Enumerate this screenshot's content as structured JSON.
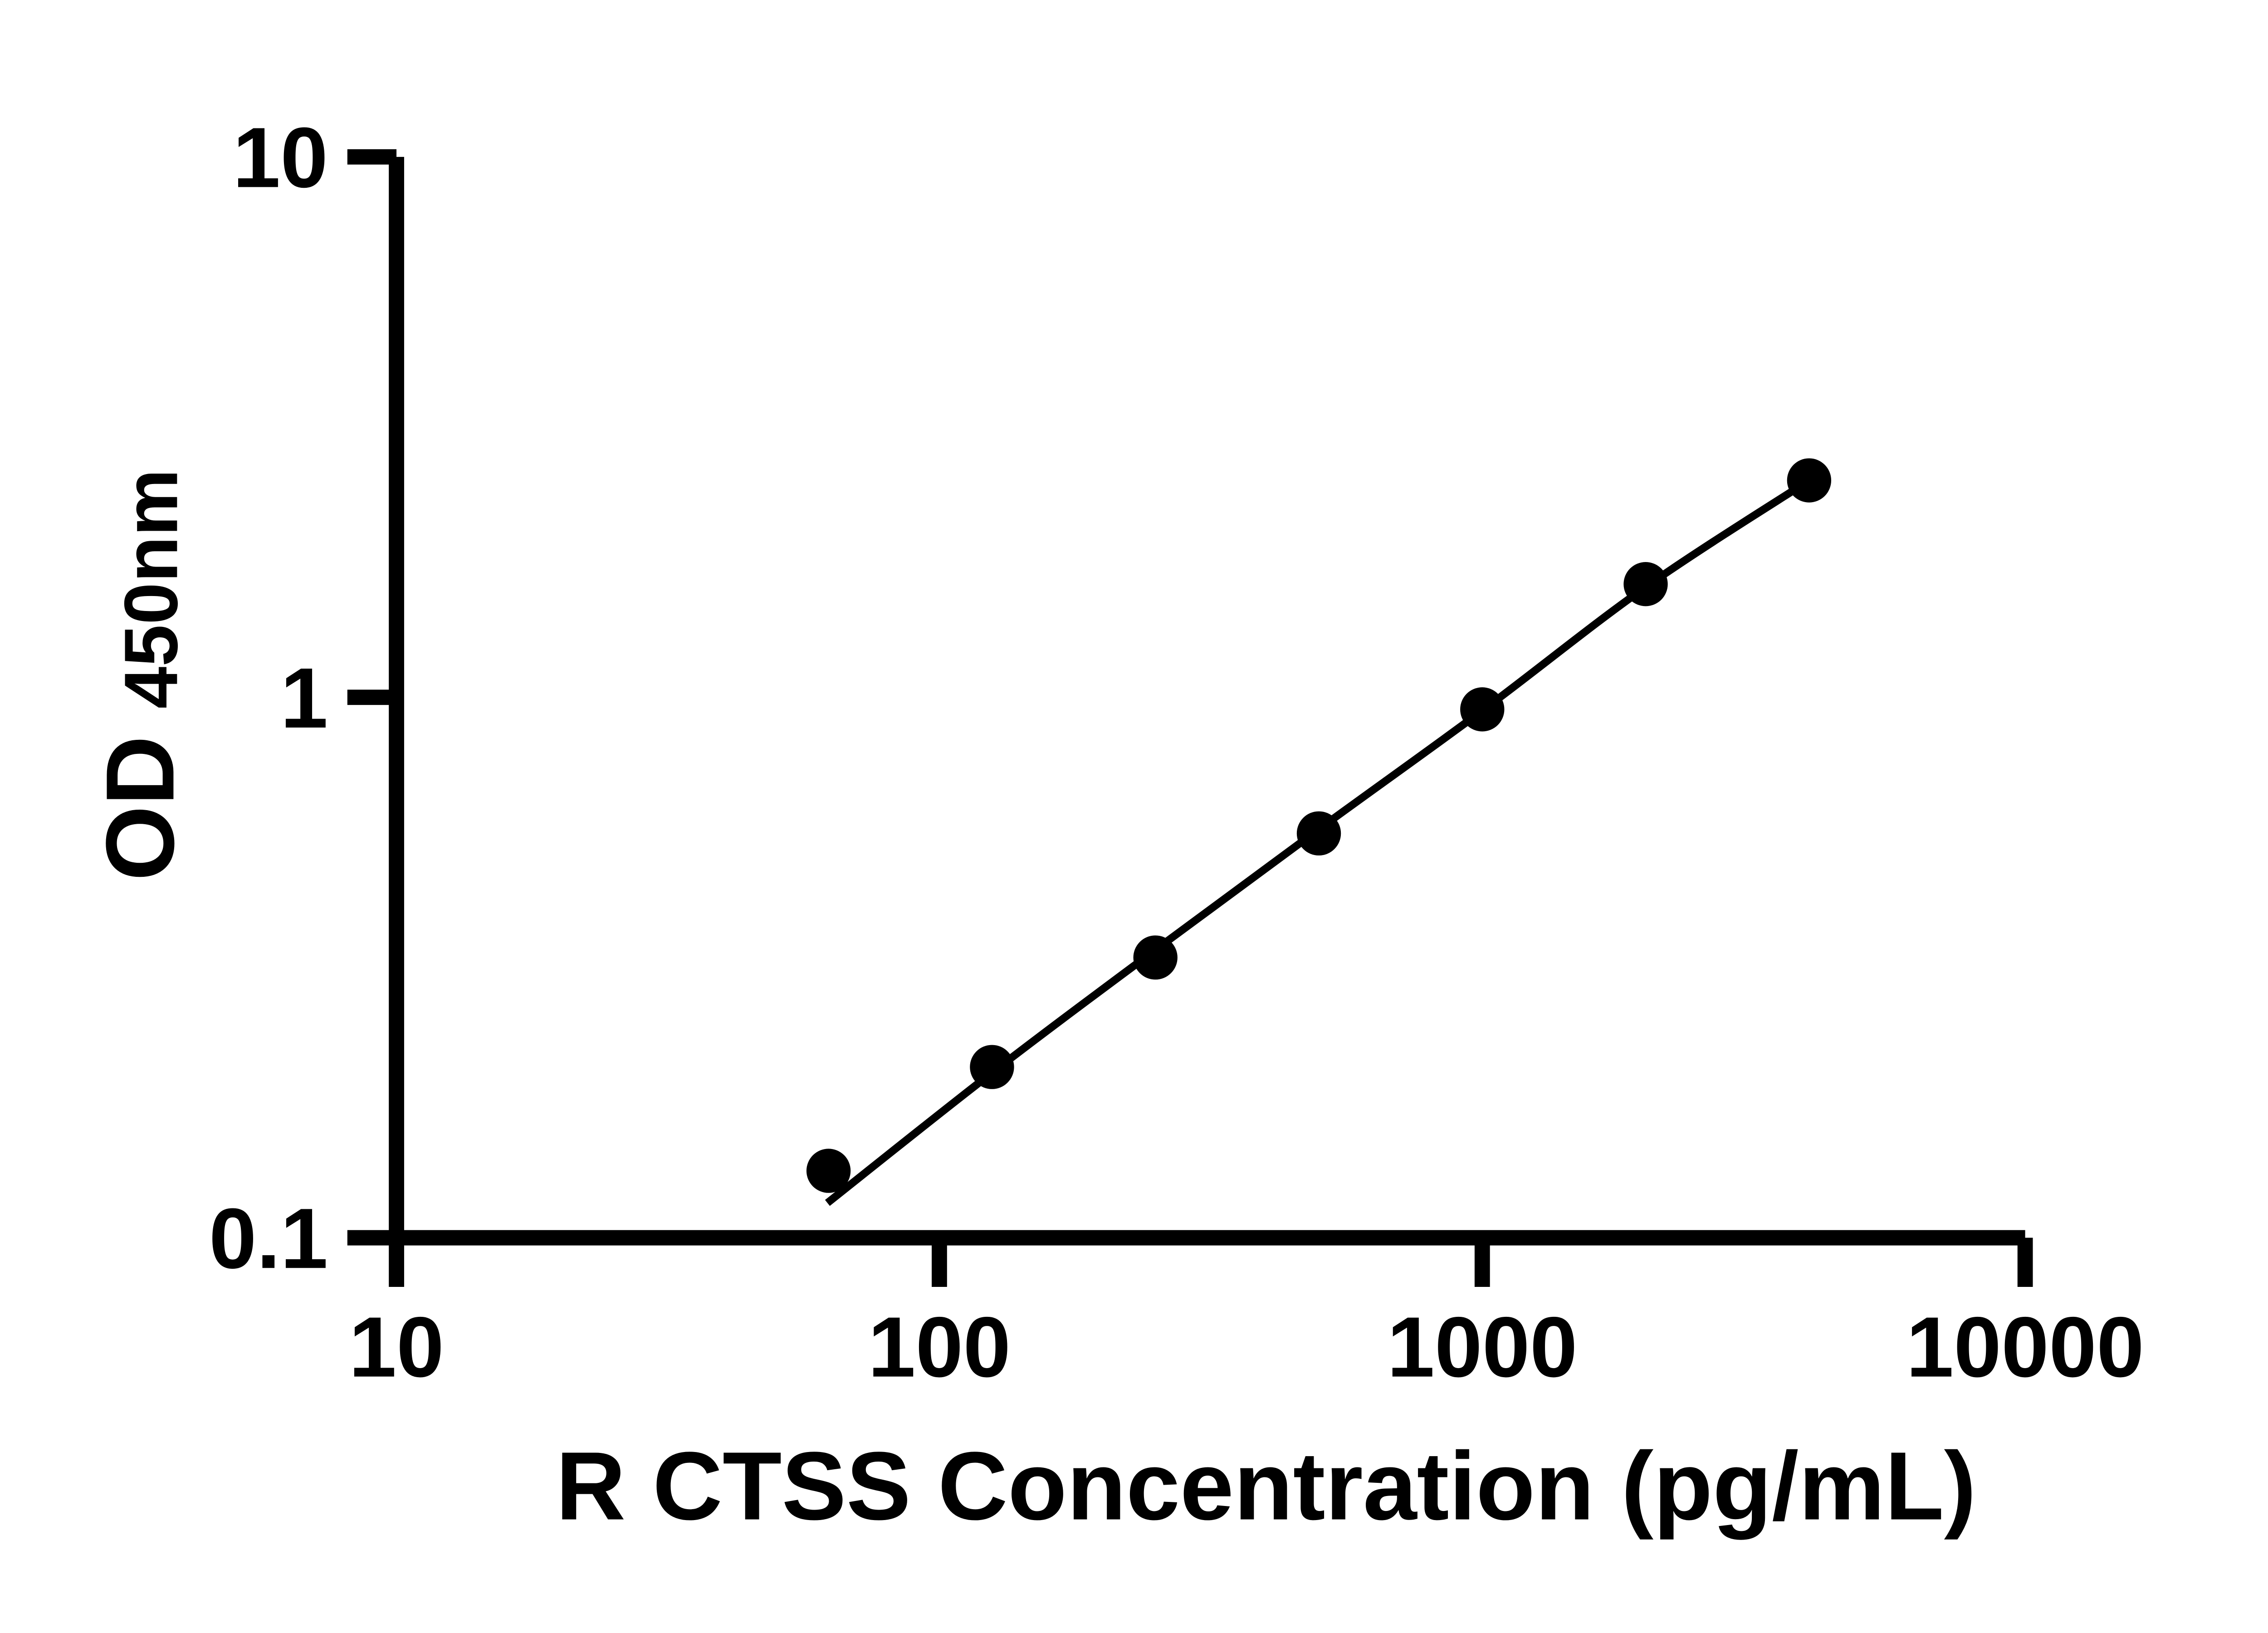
{
  "figure": {
    "background_color": "#ffffff",
    "ink_color": "#000000"
  },
  "chart_data": {
    "type": "scatter",
    "title": "",
    "xlabel": "R CTSS Concentration (pg/mL)",
    "ylabel_main": "OD",
    "ylabel_subscript": "450nm",
    "x_scale": "log",
    "y_scale": "log",
    "xlim": [
      10,
      10000
    ],
    "ylim": [
      0.1,
      10
    ],
    "x_ticks": [
      10,
      100,
      1000,
      10000
    ],
    "x_tick_labels": [
      "10",
      "100",
      "1000",
      "10000"
    ],
    "y_ticks": [
      10,
      1,
      0.1
    ],
    "y_tick_labels": [
      "10",
      "1",
      "0.1"
    ],
    "grid": false,
    "legend": false,
    "series": [
      {
        "name": "standard-points",
        "marker": "circle",
        "color": "#000000",
        "x": [
          62.5,
          125,
          250,
          500,
          1000,
          2000,
          4000
        ],
        "y": [
          0.133,
          0.207,
          0.33,
          0.56,
          0.95,
          1.62,
          2.52
        ]
      }
    ],
    "fit_line": {
      "name": "fitted-curve",
      "color": "#000000",
      "x": [
        62.2,
        125,
        250,
        500,
        1000,
        2000,
        4000
      ],
      "y": [
        0.116,
        0.202,
        0.341,
        0.57,
        0.945,
        1.6,
        2.52
      ]
    }
  }
}
